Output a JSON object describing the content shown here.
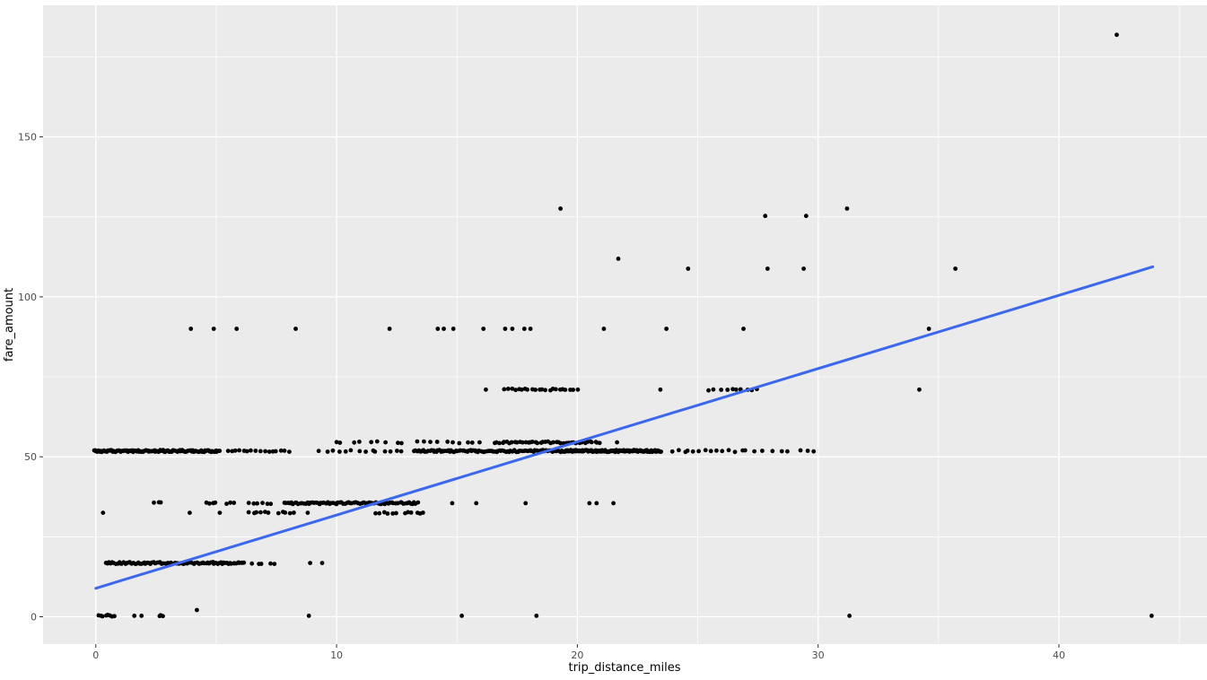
{
  "chart_data": {
    "type": "scatter",
    "title": "",
    "xlabel": "trip_distance_miles",
    "ylabel": "fare_amount",
    "x_ticks": [
      0,
      10,
      20,
      30,
      40
    ],
    "y_ticks": [
      0,
      50,
      100,
      150
    ],
    "x_minor_ticks": [
      5,
      15,
      25,
      35,
      45
    ],
    "y_minor_ticks": [
      25,
      75,
      125,
      175
    ],
    "x_range": [
      -2.19,
      46.15
    ],
    "y_range": [
      -8.55,
      191.1
    ],
    "grid": true,
    "legend": "none",
    "panel_bg_color": "#EBEBEB",
    "grid_color": "#FFFFFF",
    "tick_label_color": "#4D4D4D",
    "axis_title_color": "#000000",
    "point_color": "#000000",
    "point_radius": 2.4,
    "smooth_line": {
      "color": "#3B68EE",
      "width": 3,
      "x1": 0,
      "y1": 8.9,
      "x2": 43.9,
      "y2": 109.4
    },
    "fare_bands": [
      {
        "fare": 51.8,
        "segments": [
          [
            -0.1,
            5.15,
            115
          ],
          [
            5.4,
            8.1,
            16
          ],
          [
            9.15,
            12.9,
            14
          ],
          [
            13.2,
            19.3,
            95
          ],
          [
            19.3,
            23.5,
            125
          ],
          [
            23.8,
            27.4,
            15
          ],
          [
            27.6,
            30.1,
            7
          ]
        ],
        "singles": []
      },
      {
        "fare": 54.5,
        "segments": [
          [
            9.7,
            13.0,
            9
          ],
          [
            13.2,
            16.2,
            10
          ],
          [
            16.5,
            21.0,
            42
          ]
        ],
        "singles": [
          21.65
        ]
      },
      {
        "fare": 90.0,
        "segments": [],
        "singles": [
          3.95,
          4.9,
          5.85,
          8.3,
          12.2,
          14.2,
          14.45,
          14.85,
          16.1,
          17.0,
          17.3,
          17.8,
          18.05,
          21.1,
          23.7,
          26.9,
          34.6
        ]
      },
      {
        "fare": 71.0,
        "segments": [
          [
            16.9,
            20.05,
            22
          ],
          [
            25.35,
            27.65,
            10
          ]
        ],
        "singles": [
          16.2,
          23.45,
          34.2
        ]
      },
      {
        "fare": 35.5,
        "segments": [
          [
            2.4,
            2.75,
            3
          ],
          [
            4.5,
            5.05,
            4
          ],
          [
            5.3,
            5.8,
            3
          ],
          [
            6.3,
            7.35,
            6
          ],
          [
            7.8,
            13.4,
            78
          ]
        ],
        "singles": [
          14.8,
          15.8,
          17.85,
          20.5,
          20.8,
          21.5
        ]
      },
      {
        "fare": 32.5,
        "segments": [
          [
            6.3,
            7.3,
            6
          ],
          [
            7.5,
            8.35,
            5
          ],
          [
            11.6,
            12.5,
            6
          ],
          [
            12.75,
            13.7,
            6
          ]
        ],
        "singles": [
          0.3,
          3.9,
          5.15,
          8.8
        ]
      },
      {
        "fare": 16.8,
        "segments": [
          [
            0.4,
            6.2,
            88
          ],
          [
            6.35,
            7.55,
            5
          ]
        ],
        "singles": [
          8.9,
          9.4
        ]
      },
      {
        "fare": 0.3,
        "segments": [
          [
            0.05,
            0.85,
            8
          ],
          [
            2.6,
            2.85,
            3
          ]
        ],
        "singles": [
          1.6,
          1.9,
          8.85,
          15.2,
          18.3,
          31.3,
          43.85
        ]
      }
    ],
    "outlier_points": [
      [
        4.2,
        2.1
      ],
      [
        19.3,
        127.6
      ],
      [
        31.2,
        127.6
      ],
      [
        27.8,
        125.3
      ],
      [
        29.5,
        125.3
      ],
      [
        21.7,
        111.9
      ],
      [
        24.6,
        108.8
      ],
      [
        27.9,
        108.8
      ],
      [
        29.4,
        108.8
      ],
      [
        35.7,
        108.8
      ],
      [
        42.4,
        181.9
      ]
    ]
  }
}
